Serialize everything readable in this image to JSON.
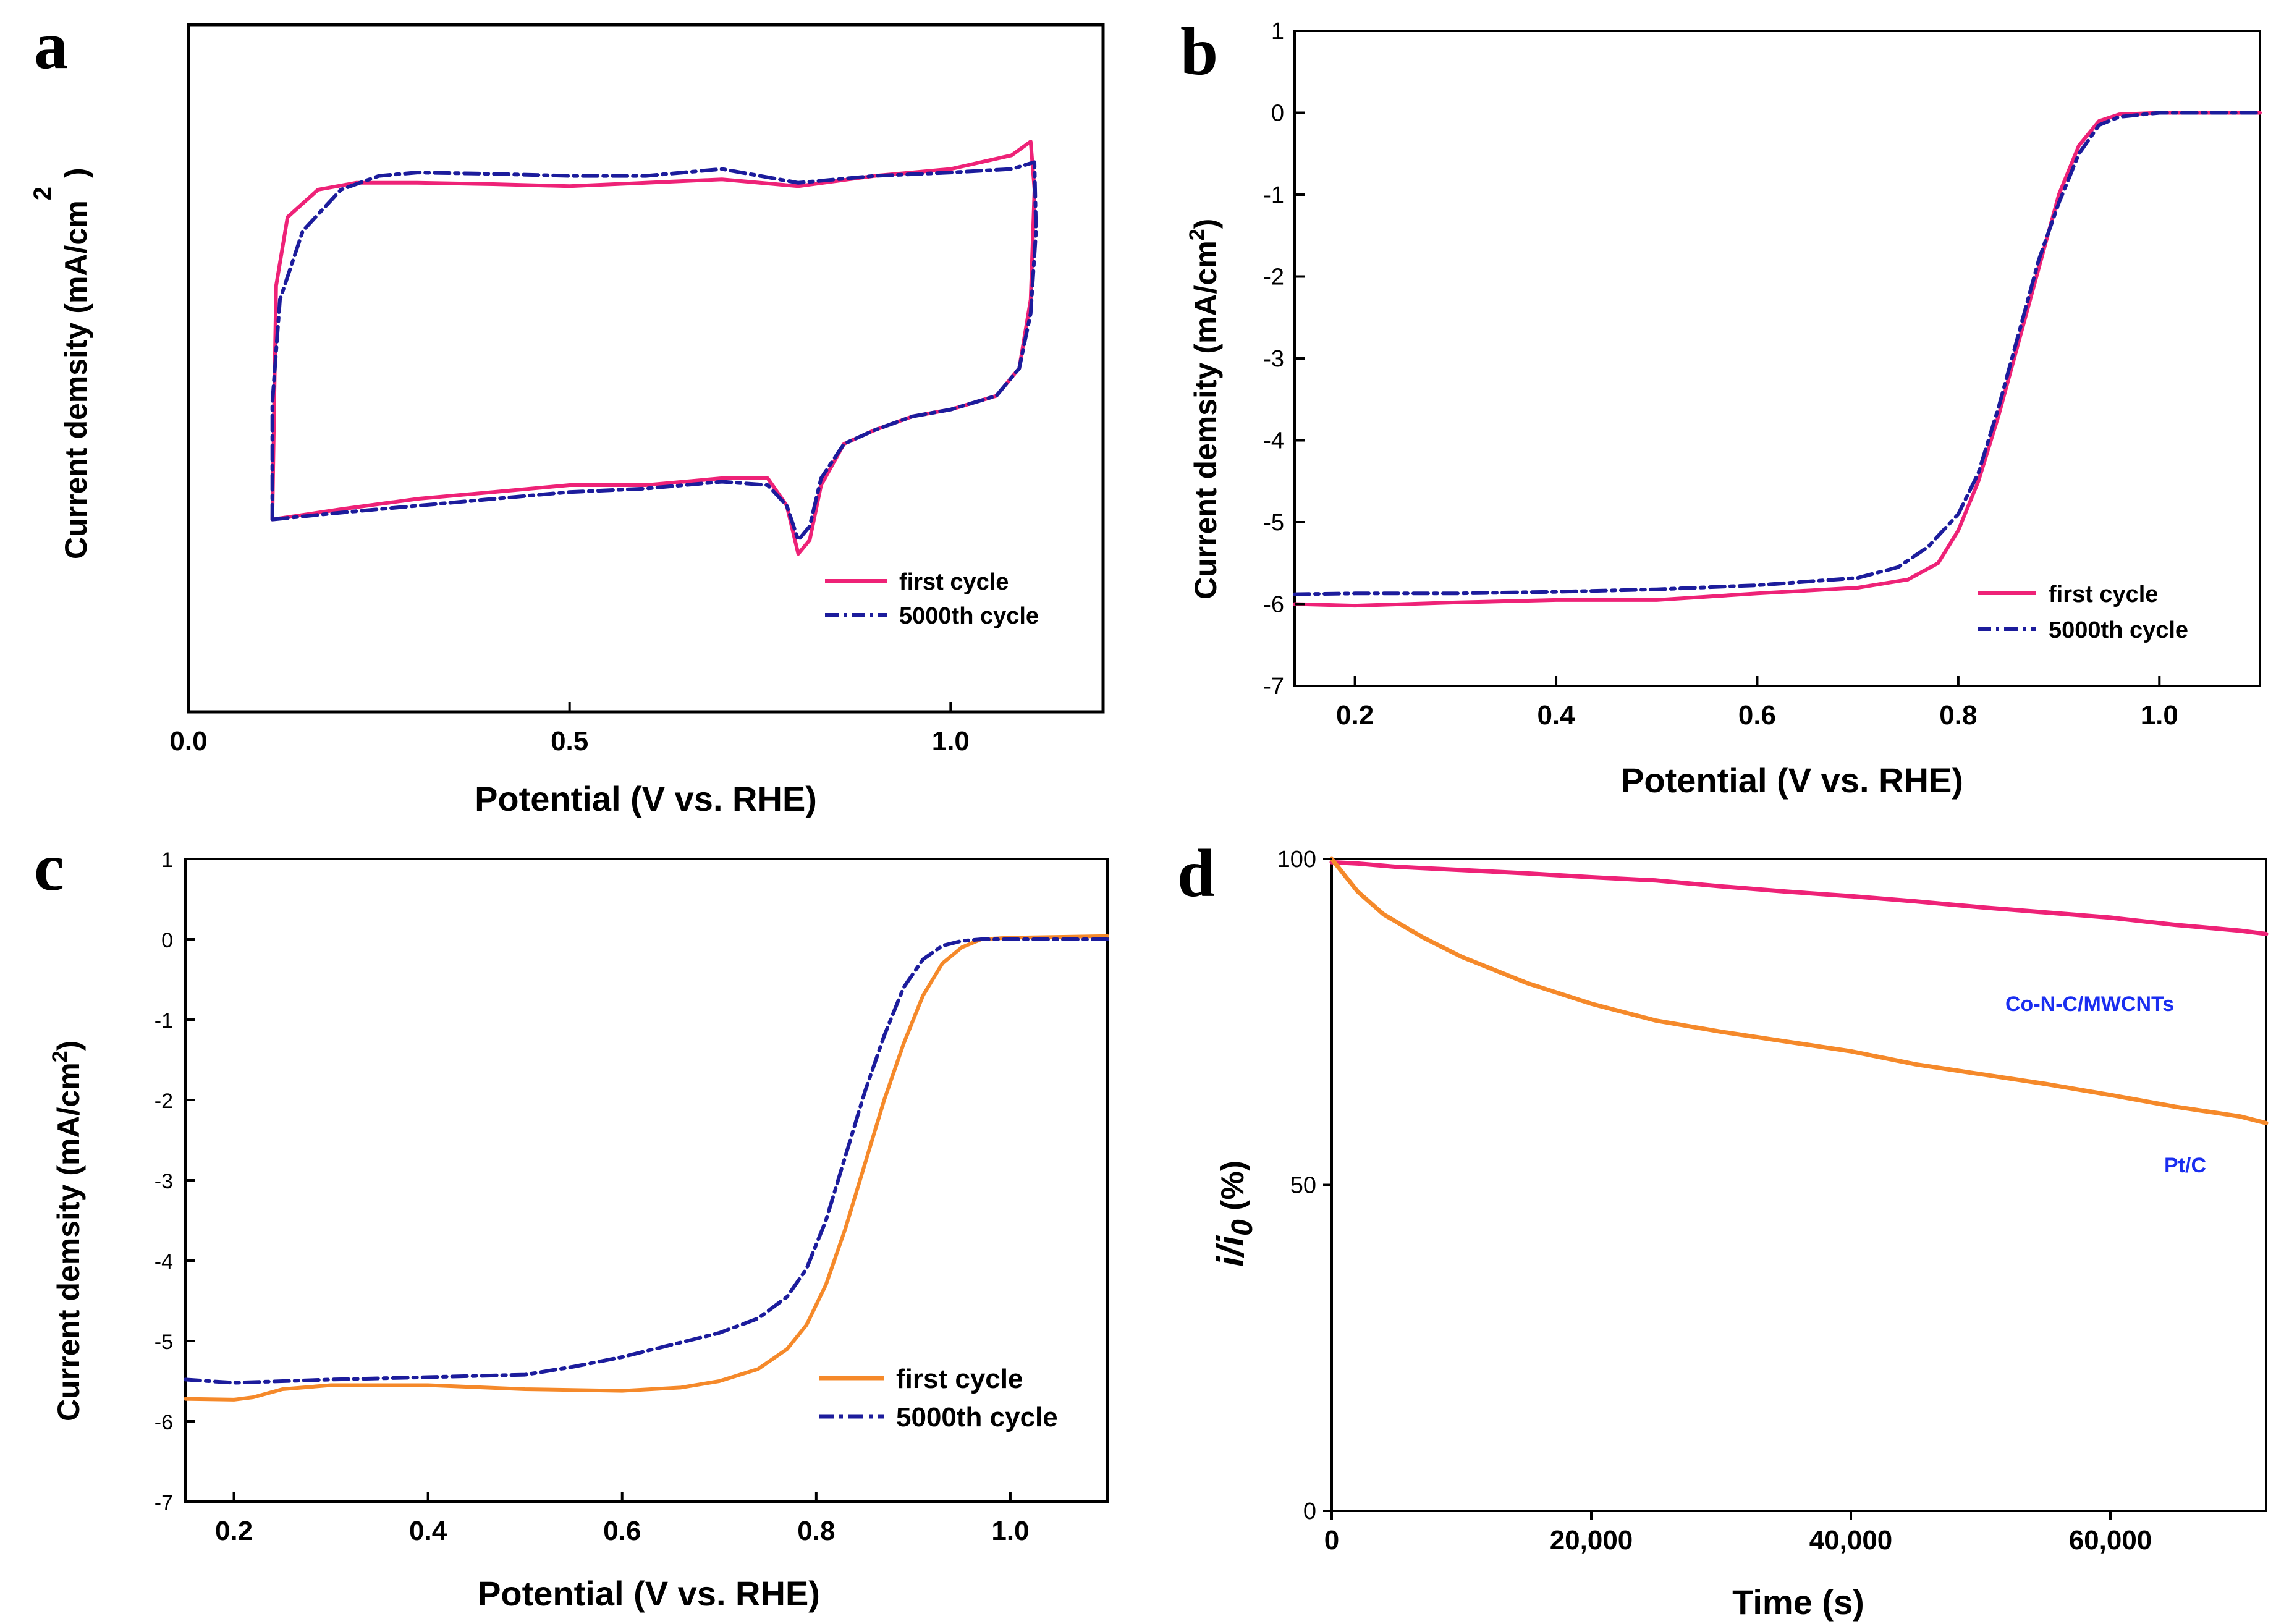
{
  "colors": {
    "pink": "#ee2277",
    "navy": "#1c1c9c",
    "orange": "#f5892a",
    "annotation_blue": "#1a2ef0"
  },
  "chart_data": [
    {
      "panel": "a",
      "type": "line",
      "xlabel": "Potential (V vs. RHE)",
      "ylabel_text": "Current demsity (mA/cm",
      "ylabel_sup": "2",
      "ylabel_close": ")",
      "xlim": [
        0.0,
        1.2
      ],
      "ylim": [
        0,
        1
      ],
      "xticks": [
        "0.0",
        "0.5",
        "1.0"
      ],
      "xtick_values": [
        0.0,
        0.5,
        1.0
      ],
      "yticks": [],
      "legend": [
        "first cycle",
        "5000th cycle"
      ],
      "series": [
        {
          "name": "first cycle",
          "color": "pink",
          "style": "solid",
          "x": [
            0.11,
            0.115,
            0.13,
            0.17,
            0.22,
            0.3,
            0.4,
            0.5,
            0.6,
            0.7,
            0.8,
            0.9,
            1.0,
            1.08,
            1.105,
            1.11,
            1.105,
            1.09,
            1.06,
            1.0,
            0.95,
            0.9,
            0.86,
            0.83,
            0.815,
            0.8,
            0.785,
            0.76,
            0.7,
            0.6,
            0.5,
            0.4,
            0.3,
            0.2,
            0.11,
            0.11
          ],
          "y": [
            0.28,
            0.62,
            0.72,
            0.76,
            0.77,
            0.77,
            0.768,
            0.765,
            0.77,
            0.775,
            0.765,
            0.78,
            0.79,
            0.81,
            0.83,
            0.76,
            0.6,
            0.5,
            0.46,
            0.44,
            0.43,
            0.41,
            0.39,
            0.33,
            0.25,
            0.23,
            0.3,
            0.34,
            0.34,
            0.33,
            0.33,
            0.32,
            0.31,
            0.295,
            0.28,
            0.28
          ]
        },
        {
          "name": "5000th cycle",
          "color": "navy",
          "style": "dashdot",
          "x": [
            0.11,
            0.11,
            0.12,
            0.15,
            0.2,
            0.25,
            0.3,
            0.4,
            0.5,
            0.6,
            0.7,
            0.8,
            0.9,
            1.0,
            1.08,
            1.11,
            1.112,
            1.105,
            1.09,
            1.06,
            1.0,
            0.95,
            0.9,
            0.86,
            0.83,
            0.815,
            0.8,
            0.785,
            0.76,
            0.7,
            0.6,
            0.5,
            0.4,
            0.3,
            0.2,
            0.11
          ],
          "y": [
            0.28,
            0.45,
            0.6,
            0.7,
            0.76,
            0.78,
            0.785,
            0.783,
            0.78,
            0.78,
            0.79,
            0.77,
            0.78,
            0.785,
            0.79,
            0.8,
            0.7,
            0.58,
            0.5,
            0.46,
            0.44,
            0.43,
            0.41,
            0.39,
            0.34,
            0.27,
            0.25,
            0.3,
            0.33,
            0.335,
            0.325,
            0.32,
            0.31,
            0.3,
            0.29,
            0.28
          ]
        }
      ]
    },
    {
      "panel": "b",
      "type": "line",
      "xlabel": "Potential (V vs. RHE)",
      "ylabel_text": "Current demsity (mA/cm",
      "ylabel_sup": "2",
      "ylabel_close": ")",
      "xlim": [
        0.14,
        1.1
      ],
      "ylim": [
        -7,
        1
      ],
      "xticks": [
        "0.2",
        "0.4",
        "0.6",
        "0.8",
        "1.0"
      ],
      "xtick_values": [
        0.2,
        0.4,
        0.6,
        0.8,
        1.0
      ],
      "yticks": [
        "1",
        "0",
        "-1",
        "-2",
        "-3",
        "-4",
        "-5",
        "-6",
        "-7"
      ],
      "ytick_values": [
        1,
        0,
        -1,
        -2,
        -3,
        -4,
        -5,
        -6,
        -7
      ],
      "legend": [
        "first cycle",
        "5000th cycle"
      ],
      "series": [
        {
          "name": "first cycle",
          "color": "pink",
          "style": "solid",
          "x": [
            0.14,
            0.2,
            0.3,
            0.4,
            0.5,
            0.6,
            0.7,
            0.75,
            0.78,
            0.8,
            0.82,
            0.84,
            0.86,
            0.88,
            0.9,
            0.92,
            0.94,
            0.96,
            1.0,
            1.05,
            1.1
          ],
          "y": [
            -6.0,
            -6.02,
            -5.98,
            -5.95,
            -5.95,
            -5.87,
            -5.8,
            -5.7,
            -5.5,
            -5.1,
            -4.5,
            -3.7,
            -2.8,
            -1.9,
            -1.0,
            -0.4,
            -0.1,
            -0.02,
            0.0,
            0.0,
            0.0
          ]
        },
        {
          "name": "5000th cycle",
          "color": "navy",
          "style": "dashdot",
          "x": [
            0.14,
            0.2,
            0.3,
            0.4,
            0.5,
            0.6,
            0.7,
            0.74,
            0.77,
            0.8,
            0.82,
            0.84,
            0.86,
            0.88,
            0.9,
            0.92,
            0.94,
            0.96,
            1.0,
            1.05,
            1.1
          ],
          "y": [
            -5.88,
            -5.87,
            -5.87,
            -5.85,
            -5.82,
            -5.77,
            -5.68,
            -5.55,
            -5.3,
            -4.9,
            -4.4,
            -3.6,
            -2.7,
            -1.8,
            -1.1,
            -0.5,
            -0.15,
            -0.05,
            0.0,
            0.0,
            0.0
          ]
        }
      ]
    },
    {
      "panel": "c",
      "type": "line",
      "xlabel": "Potential (V vs. RHE)",
      "ylabel_text": "Current demsity (mA/cm",
      "ylabel_sup": "2",
      "ylabel_close": ")",
      "xlim": [
        0.15,
        1.1
      ],
      "ylim": [
        -7,
        1
      ],
      "xticks": [
        "0.2",
        "0.4",
        "0.6",
        "0.8",
        "1.0"
      ],
      "xtick_values": [
        0.2,
        0.4,
        0.6,
        0.8,
        1.0
      ],
      "yticks": [
        "1",
        "0",
        "-1",
        "-2",
        "-3",
        "-4",
        "-5",
        "-6",
        "-7"
      ],
      "ytick_values": [
        1,
        0,
        -1,
        -2,
        -3,
        -4,
        -5,
        -6,
        -7
      ],
      "legend": [
        "first cycle",
        "5000th cycle"
      ],
      "series": [
        {
          "name": "first cycle",
          "color": "orange",
          "style": "solid",
          "x": [
            0.15,
            0.2,
            0.22,
            0.25,
            0.3,
            0.4,
            0.5,
            0.6,
            0.66,
            0.7,
            0.74,
            0.77,
            0.79,
            0.81,
            0.83,
            0.85,
            0.87,
            0.89,
            0.91,
            0.93,
            0.95,
            0.97,
            1.0,
            1.05,
            1.1
          ],
          "y": [
            -5.72,
            -5.73,
            -5.7,
            -5.6,
            -5.55,
            -5.55,
            -5.6,
            -5.62,
            -5.58,
            -5.5,
            -5.35,
            -5.1,
            -4.8,
            -4.3,
            -3.6,
            -2.8,
            -2.0,
            -1.3,
            -0.7,
            -0.3,
            -0.1,
            0.0,
            0.02,
            0.03,
            0.04
          ]
        },
        {
          "name": "5000th cycle",
          "color": "navy",
          "style": "dashdot",
          "x": [
            0.15,
            0.2,
            0.3,
            0.4,
            0.5,
            0.55,
            0.6,
            0.65,
            0.7,
            0.74,
            0.77,
            0.79,
            0.81,
            0.83,
            0.85,
            0.87,
            0.89,
            0.91,
            0.93,
            0.95,
            0.97,
            1.0,
            1.05,
            1.1
          ],
          "y": [
            -5.48,
            -5.52,
            -5.48,
            -5.45,
            -5.42,
            -5.32,
            -5.2,
            -5.05,
            -4.9,
            -4.72,
            -4.45,
            -4.1,
            -3.5,
            -2.7,
            -1.9,
            -1.2,
            -0.6,
            -0.25,
            -0.08,
            -0.02,
            0.0,
            0.0,
            0.0,
            0.0
          ]
        }
      ]
    },
    {
      "panel": "d",
      "type": "line",
      "xlabel": "Time (s)",
      "ylabel_i": "i/i",
      "ylabel_sub": "0",
      "ylabel_unit": " (%)",
      "xlim": [
        0,
        72000
      ],
      "ylim": [
        0,
        100
      ],
      "xticks": [
        "0",
        "20,000",
        "40,000",
        "60,000"
      ],
      "xtick_values": [
        0,
        20000,
        40000,
        60000
      ],
      "yticks": [
        "100",
        "50",
        "0"
      ],
      "ytick_values": [
        100,
        50,
        0
      ],
      "annotations": [
        "Co-N-C/MWCNTs",
        "Pt/C"
      ],
      "series": [
        {
          "name": "Co-N-C/MWCNTs",
          "color": "pink",
          "style": "solid",
          "x": [
            0,
            2000,
            5000,
            10000,
            15000,
            20000,
            25000,
            30000,
            35000,
            40000,
            45000,
            50000,
            55000,
            60000,
            65000,
            70000,
            72000
          ],
          "y": [
            99.5,
            99.3,
            98.8,
            98.3,
            97.8,
            97.2,
            96.7,
            95.8,
            95.0,
            94.3,
            93.5,
            92.6,
            91.8,
            91.0,
            89.9,
            89.0,
            88.5
          ]
        },
        {
          "name": "Pt/C",
          "color": "orange",
          "style": "solid",
          "x": [
            0,
            1000,
            2000,
            4000,
            7000,
            10000,
            15000,
            20000,
            25000,
            30000,
            35000,
            40000,
            45000,
            50000,
            55000,
            60000,
            65000,
            70000,
            72000
          ],
          "y": [
            100,
            97.5,
            95.0,
            91.5,
            88.0,
            85.0,
            81.0,
            77.8,
            75.2,
            73.5,
            72.0,
            70.5,
            68.5,
            67.0,
            65.5,
            63.8,
            62.0,
            60.5,
            59.5
          ]
        }
      ]
    }
  ]
}
